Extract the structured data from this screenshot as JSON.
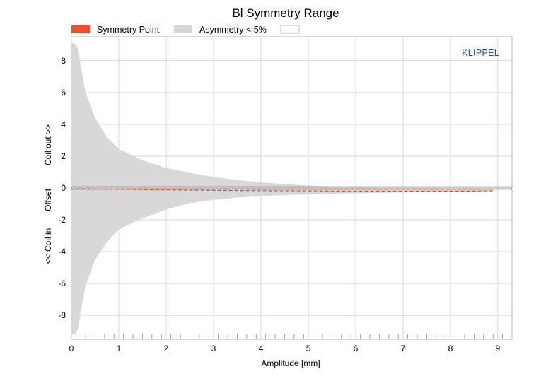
{
  "chart_data": {
    "type": "area",
    "title": "Bl Symmetry Range",
    "xlabel": "Amplitude [mm]",
    "ylabel_parts": [
      "<< Coil in",
      "Offset",
      "Coil out >>"
    ],
    "watermark": "KLIPPEL",
    "xlim": [
      0,
      9.3
    ],
    "ylim": [
      -9.5,
      9.5
    ],
    "xticks": [
      "0",
      "1",
      "2",
      "3",
      "4",
      "5",
      "6",
      "7",
      "8",
      "9"
    ],
    "yticks": [
      "8",
      "6",
      "4",
      "2",
      "0",
      "-2",
      "-4",
      "-6",
      "-8"
    ],
    "grid": true,
    "legend": {
      "position": "top",
      "entries": [
        {
          "label": "Symmetry Point",
          "color": "#e8512e"
        },
        {
          "label": "Asymmetry < 5%",
          "color": "#d9d7d8"
        },
        {
          "label": "",
          "color": "#ffffff"
        }
      ]
    },
    "series": [
      {
        "name": "Asymmetry < 5%",
        "kind": "band",
        "color": "#d9d7d8",
        "x": [
          0.0,
          0.05,
          0.1,
          0.15,
          0.2,
          0.3,
          0.5,
          0.75,
          1.0,
          1.5,
          2.0,
          2.5,
          3.0,
          3.5,
          4.0,
          5.0,
          6.0,
          7.0,
          8.0,
          8.6,
          8.9
        ],
        "upper": [
          9.1,
          9.1,
          9.0,
          8.7,
          7.6,
          6.0,
          4.4,
          3.2,
          2.45,
          1.75,
          1.25,
          0.95,
          0.7,
          0.5,
          0.35,
          0.15,
          0.05,
          0.0,
          -0.05,
          -0.1,
          -0.1
        ],
        "lower": [
          -9.2,
          -9.2,
          -9.1,
          -8.8,
          -7.7,
          -6.1,
          -4.5,
          -3.4,
          -2.6,
          -1.9,
          -1.35,
          -0.95,
          -0.75,
          -0.6,
          -0.5,
          -0.4,
          -0.33,
          -0.28,
          -0.25,
          -0.22,
          -0.18
        ]
      },
      {
        "name": "Symmetry Point",
        "kind": "line",
        "style": "dashed",
        "color": "#e8512e",
        "x": [
          0.1,
          1.0,
          2.0,
          3.0,
          4.0,
          5.0,
          6.0,
          7.0,
          8.0,
          8.9
        ],
        "y": [
          -0.05,
          -0.08,
          -0.12,
          -0.15,
          -0.17,
          -0.18,
          -0.2,
          -0.2,
          -0.2,
          -0.18
        ]
      }
    ]
  }
}
